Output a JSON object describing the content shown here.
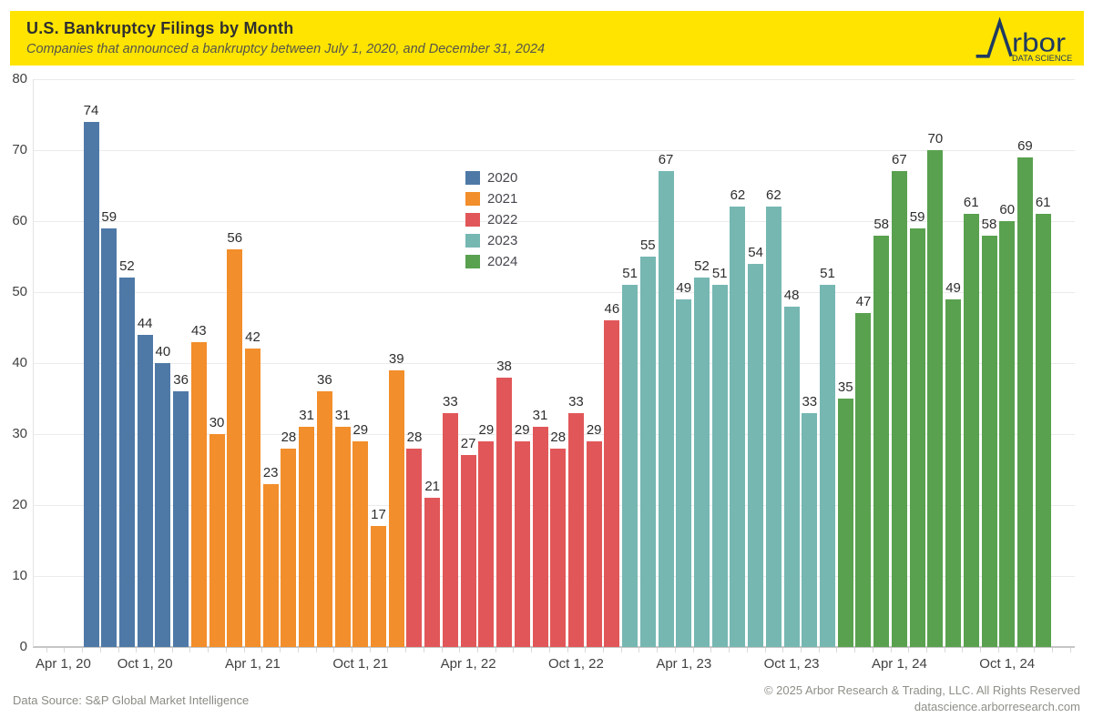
{
  "header": {
    "title": "U.S. Bankruptcy Filings by Month",
    "subtitle": "Companies that announced a bankruptcy between July 1, 2020, and December 31, 2024",
    "banner_color": "#FFE400",
    "logo": {
      "brand": "Arbor",
      "brand_text_after_mark": "rbor",
      "tagline": "DATA SCIENCE",
      "color": "#1f3a61"
    }
  },
  "chart_data": {
    "type": "bar",
    "title": "U.S. Bankruptcy Filings by Month",
    "subtitle": "Companies that announced a bankruptcy between July 1, 2020, and December 31, 2024",
    "ylim": [
      0,
      80
    ],
    "y_ticks": [
      0,
      10,
      20,
      30,
      40,
      50,
      60,
      70,
      80
    ],
    "grid": "horizontal",
    "legend_position": "inside-upper-center-left",
    "x_tick_labels": [
      "Apr 1, 20",
      "Oct 1, 20",
      "Apr 1, 21",
      "Oct 1, 21",
      "Apr 1, 22",
      "Oct 1, 22",
      "Apr 1, 23",
      "Oct 1, 23",
      "Apr 1, 24",
      "Oct 1, 24"
    ],
    "timeline_note": "bars are consecutive months from Jul 2020 through Dec 2024",
    "series": [
      {
        "name": "2020",
        "color": "#4E79A7",
        "first_month": "Jul",
        "values": [
          74,
          59,
          52,
          44,
          40,
          36
        ]
      },
      {
        "name": "2021",
        "color": "#F28E2B",
        "first_month": "Jan",
        "values": [
          43,
          30,
          56,
          42,
          23,
          28,
          31,
          36,
          31,
          29,
          17,
          39
        ]
      },
      {
        "name": "2022",
        "color": "#E15759",
        "first_month": "Jan",
        "values": [
          28,
          21,
          33,
          27,
          29,
          38,
          29,
          31,
          28,
          33,
          29,
          46
        ]
      },
      {
        "name": "2023",
        "color": "#76B7B2",
        "first_month": "Jan",
        "values": [
          51,
          55,
          67,
          49,
          52,
          51,
          62,
          54,
          62,
          48,
          33,
          51
        ]
      },
      {
        "name": "2024",
        "color": "#59A14F",
        "first_month": "Jan",
        "values": [
          35,
          47,
          58,
          67,
          59,
          70,
          49,
          61,
          58,
          60,
          69,
          61
        ]
      }
    ]
  },
  "footer": {
    "data_source": "Data Source: S&P Global Market Intelligence",
    "copyright": "© 2025 Arbor Research & Trading, LLC. All Rights Reserved",
    "url": "datascience.arborresearch.com"
  }
}
